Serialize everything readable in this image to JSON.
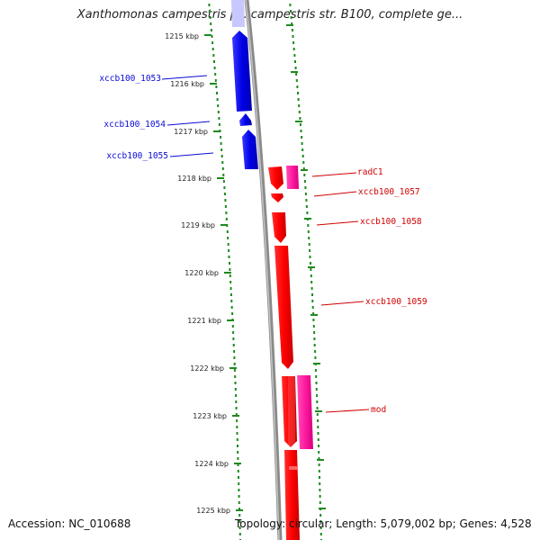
{
  "title": "Xanthomonas campestris pv. campestris str. B100, complete ge...",
  "footer": {
    "accession": "Accession: NC_010688",
    "summary": "Topology: circular; Length: 5,079,002 bp; Genes: 4,528"
  },
  "ruler": {
    "ticks": [
      "1215 kbp",
      "1216 kbp",
      "1217 kbp",
      "1218 kbp",
      "1219 kbp",
      "1220 kbp",
      "1221 kbp",
      "1222 kbp",
      "1223 kbp",
      "1224 kbp",
      "1225 kbp"
    ]
  },
  "genes": {
    "reverse_strand": [
      {
        "label": "xccb100_1053",
        "color": "#0b0bd6"
      },
      {
        "label": "xccb100_1054",
        "color": "#0b0bd6"
      },
      {
        "label": "xccb100_1055",
        "color": "#0b0bd6"
      }
    ],
    "forward_strand": [
      {
        "label": "radC1",
        "color": "#e00000"
      },
      {
        "label": "xccb100_1057",
        "color": "#e00000"
      },
      {
        "label": "xccb100_1058",
        "color": "#e00000"
      },
      {
        "label": "xccb100_1059",
        "color": "#e00000"
      },
      {
        "label": "mod",
        "color": "#e00000"
      }
    ]
  },
  "colors": {
    "forward": "#ff1010",
    "reverse": "#0a0ae0",
    "feature_pink": "#ff33aa",
    "ticks_green": "#1e8a1e"
  }
}
